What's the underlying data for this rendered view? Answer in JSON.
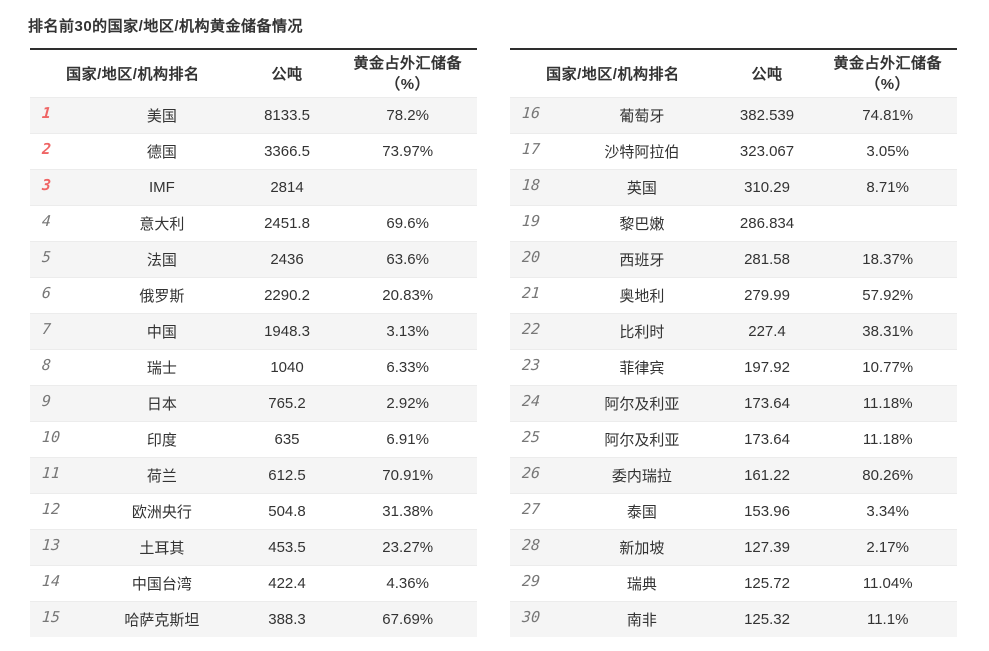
{
  "page_title": "排名前30的国家/地区/机构黄金储备情况",
  "columns": {
    "rank_name": "国家/地区/机构排名",
    "tons": "公吨",
    "pct": "黄金占外汇储备（%）"
  },
  "colors": {
    "accent_red": "#ef6565",
    "rank_gray": "#777777",
    "text": "#333333",
    "alt_row_bg": "#f5f5f5",
    "table_top_border": "#2e2e2e",
    "row_divider": "#ececec"
  },
  "tables": [
    {
      "rows": [
        {
          "rank": "1",
          "name": "美国",
          "tons": "8133.5",
          "pct": "78.2%",
          "top3": true
        },
        {
          "rank": "2",
          "name": "德国",
          "tons": "3366.5",
          "pct": "73.97%",
          "top3": true
        },
        {
          "rank": "3",
          "name": "IMF",
          "tons": "2814",
          "pct": "",
          "top3": true
        },
        {
          "rank": "4",
          "name": "意大利",
          "tons": "2451.8",
          "pct": "69.6%",
          "top3": false
        },
        {
          "rank": "5",
          "name": "法国",
          "tons": "2436",
          "pct": "63.6%",
          "top3": false
        },
        {
          "rank": "6",
          "name": "俄罗斯",
          "tons": "2290.2",
          "pct": "20.83%",
          "top3": false
        },
        {
          "rank": "7",
          "name": "中国",
          "tons": "1948.3",
          "pct": "3.13%",
          "top3": false
        },
        {
          "rank": "8",
          "name": "瑞士",
          "tons": "1040",
          "pct": "6.33%",
          "top3": false
        },
        {
          "rank": "9",
          "name": "日本",
          "tons": "765.2",
          "pct": "2.92%",
          "top3": false
        },
        {
          "rank": "10",
          "name": "印度",
          "tons": "635",
          "pct": "6.91%",
          "top3": false
        },
        {
          "rank": "11",
          "name": "荷兰",
          "tons": "612.5",
          "pct": "70.91%",
          "top3": false
        },
        {
          "rank": "12",
          "name": "欧洲央行",
          "tons": "504.8",
          "pct": "31.38%",
          "top3": false
        },
        {
          "rank": "13",
          "name": "土耳其",
          "tons": "453.5",
          "pct": "23.27%",
          "top3": false
        },
        {
          "rank": "14",
          "name": "中国台湾",
          "tons": "422.4",
          "pct": "4.36%",
          "top3": false
        },
        {
          "rank": "15",
          "name": "哈萨克斯坦",
          "tons": "388.3",
          "pct": "67.69%",
          "top3": false
        }
      ]
    },
    {
      "rows": [
        {
          "rank": "16",
          "name": "葡萄牙",
          "tons": "382.539",
          "pct": "74.81%",
          "top3": false
        },
        {
          "rank": "17",
          "name": "沙特阿拉伯",
          "tons": "323.067",
          "pct": "3.05%",
          "top3": false
        },
        {
          "rank": "18",
          "name": "英国",
          "tons": "310.29",
          "pct": "8.71%",
          "top3": false
        },
        {
          "rank": "19",
          "name": "黎巴嫩",
          "tons": "286.834",
          "pct": "",
          "top3": false
        },
        {
          "rank": "20",
          "name": "西班牙",
          "tons": "281.58",
          "pct": "18.37%",
          "top3": false
        },
        {
          "rank": "21",
          "name": "奥地利",
          "tons": "279.99",
          "pct": "57.92%",
          "top3": false
        },
        {
          "rank": "22",
          "name": "比利时",
          "tons": "227.4",
          "pct": "38.31%",
          "top3": false
        },
        {
          "rank": "23",
          "name": "菲律宾",
          "tons": "197.92",
          "pct": "10.77%",
          "top3": false
        },
        {
          "rank": "24",
          "name": "阿尔及利亚",
          "tons": "173.64",
          "pct": "11.18%",
          "top3": false
        },
        {
          "rank": "25",
          "name": "阿尔及利亚",
          "tons": "173.64",
          "pct": "11.18%",
          "top3": false
        },
        {
          "rank": "26",
          "name": "委内瑞拉",
          "tons": "161.22",
          "pct": "80.26%",
          "top3": false
        },
        {
          "rank": "27",
          "name": "泰国",
          "tons": "153.96",
          "pct": "3.34%",
          "top3": false
        },
        {
          "rank": "28",
          "name": "新加坡",
          "tons": "127.39",
          "pct": "2.17%",
          "top3": false
        },
        {
          "rank": "29",
          "name": "瑞典",
          "tons": "125.72",
          "pct": "11.04%",
          "top3": false
        },
        {
          "rank": "30",
          "name": "南非",
          "tons": "125.32",
          "pct": "11.1%",
          "top3": false
        }
      ]
    }
  ]
}
